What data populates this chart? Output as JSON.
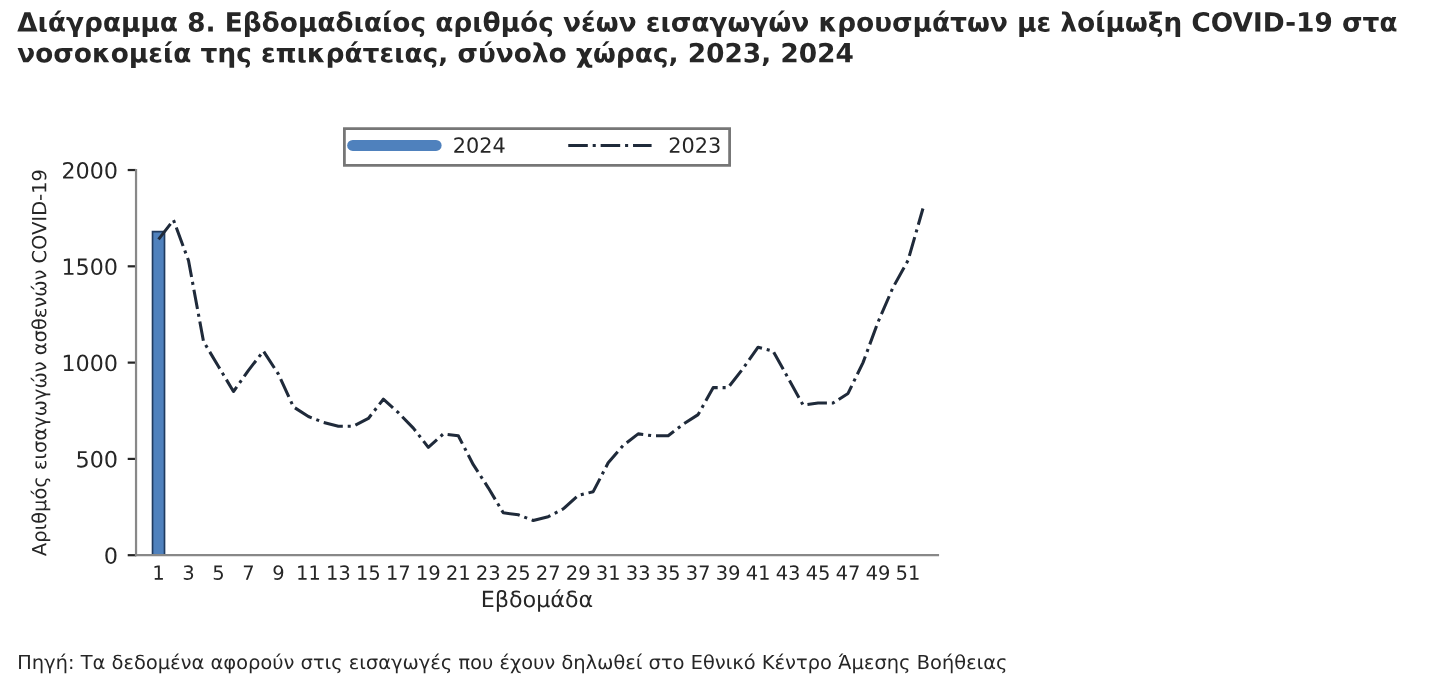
{
  "chart_data": {
    "type": "bar",
    "title": "Διάγραμμα 8. Εβδομαδιαίος αριθμός νέων εισαγωγών κρουσμάτων με λοίμωξη COVID-19 στα νοσοκομεία της επικράτειας, σύνολο χώρας, 2023, 2024",
    "xlabel": "Εβδομάδα",
    "ylabel": "Αριθμός εισαγωγών ασθενών COVID-19",
    "annotations": [
      "Πηγή: Τα δεδομένα αφορούν στις εισαγωγές που έχουν δηλωθεί στο Εθνικό Κέντρο Άμεσης Βοήθειας"
    ],
    "categories": [
      "1",
      null,
      "3",
      null,
      "5",
      null,
      "7",
      null,
      "9",
      null,
      "11",
      null,
      "13",
      null,
      "15",
      null,
      "17",
      null,
      "19",
      null,
      "21",
      null,
      "23",
      null,
      "25",
      null,
      "27",
      null,
      "29",
      null,
      "31",
      null,
      "33",
      null,
      "35",
      null,
      "37",
      null,
      "39",
      null,
      "41",
      null,
      "43",
      null,
      "45",
      null,
      "47",
      null,
      "49",
      null,
      "51",
      null
    ],
    "series": [
      {
        "name": "2024",
        "color": "#4f81bd",
        "values": [
          1680,
          null,
          null,
          null,
          null,
          null,
          null,
          null,
          null,
          null,
          null,
          null,
          null,
          null,
          null,
          null,
          null,
          null,
          null,
          null,
          null,
          null,
          null,
          null,
          null,
          null,
          null,
          null,
          null,
          null,
          null,
          null,
          null,
          null,
          null,
          null,
          null,
          null,
          null,
          null,
          null,
          null,
          null,
          null,
          null,
          null,
          null,
          null,
          null,
          null,
          null,
          null
        ]
      },
      {
        "name": "2023",
        "type": "line",
        "color": "#1f2a3a",
        "line_style": "dashdot",
        "values": [
          1640,
          1740,
          1530,
          1110,
          980,
          850,
          960,
          1060,
          940,
          770,
          720,
          690,
          670,
          670,
          710,
          810,
          740,
          660,
          560,
          630,
          620,
          470,
          350,
          220,
          210,
          180,
          200,
          240,
          310,
          330,
          480,
          570,
          630,
          620,
          620,
          680,
          730,
          870,
          870,
          970,
          1080,
          1060,
          920,
          780,
          790,
          790,
          840,
          1000,
          1210,
          1390,
          1530,
          1800
        ]
      }
    ],
    "ylim": [
      0,
      2000
    ],
    "yticks": [
      0,
      500,
      1000,
      1500,
      2000
    ],
    "grid": false,
    "legend": "top"
  }
}
